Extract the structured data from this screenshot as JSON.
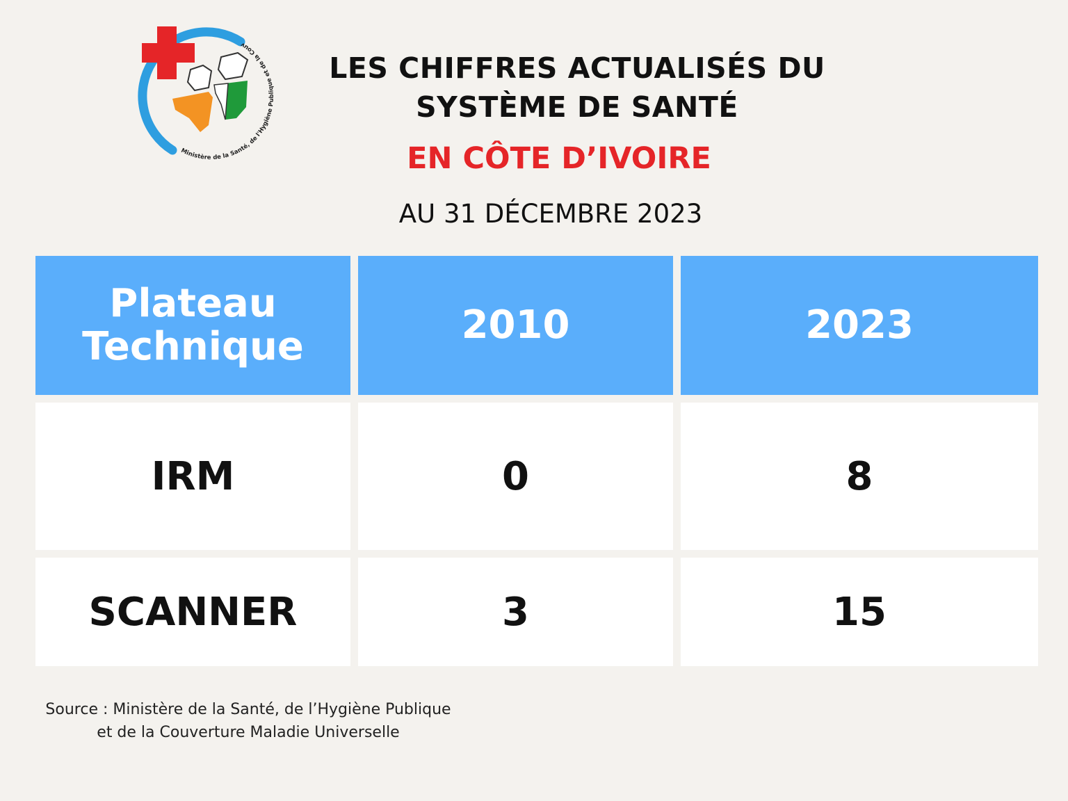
{
  "logo": {
    "name": "ministry-logo",
    "ring_text": "Ministère de la Santé, de l'Hygiène Publique et de la Couverture Maladie Universelle",
    "colors": {
      "cross": "#e52528",
      "ring": "#2e9ee0",
      "orange": "#f39323",
      "green": "#1f9a3a"
    }
  },
  "header": {
    "title_line1": "LES CHIFFRES ACTUALISÉS DU",
    "title_line2": "SYSTÈME DE SANTÉ",
    "subtitle": "EN CÔTE D’IVOIRE",
    "date": "AU 31 DÉCEMBRE 2023"
  },
  "colors": {
    "header_bg": "#5aaefb",
    "accent_red": "#e52528",
    "page_bg": "#f4f2ee"
  },
  "chart_data": {
    "type": "table",
    "columns": [
      "Plateau Technique",
      "2010",
      "2023"
    ],
    "rows": [
      {
        "label": "IRM",
        "values": [
          "0",
          "8"
        ]
      },
      {
        "label": "SCANNER",
        "values": [
          "3",
          "15"
        ]
      }
    ]
  },
  "footer": {
    "source_line1": "Source : Ministère de la Santé, de l’Hygiène Publique",
    "source_line2": "et de la Couverture Maladie Universelle"
  }
}
